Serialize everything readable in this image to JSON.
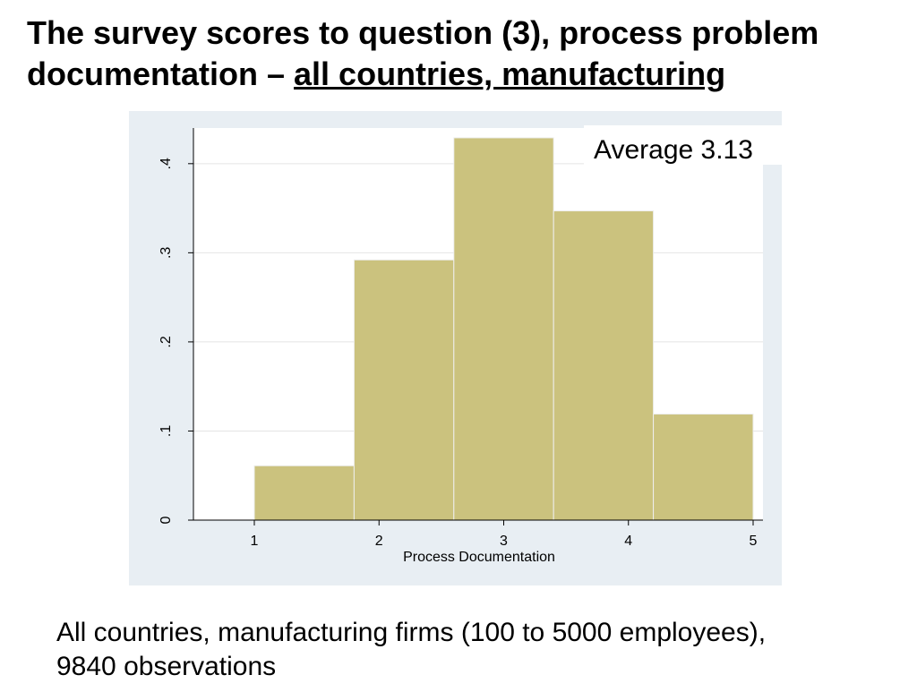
{
  "slide": {
    "title_part1": "The survey scores to question (3), process problem documentation – ",
    "title_part2": "all countries, manufacturing",
    "caption_line1": "All countries, manufacturing firms (100 to 5000 employees),",
    "caption_line2": "9840 observations"
  },
  "colors": {
    "plot_background": "#e8eef3",
    "bar_fill": "#cbc27e",
    "bar_stroke": "#eeeeee",
    "grid": "#e4e4e4",
    "axis": "#000000"
  },
  "chart_data": {
    "type": "bar",
    "subtype": "histogram",
    "xlabel": "Process Documentation",
    "ylabel": "",
    "annotation": "Average 3.13",
    "xlim": [
      1,
      5
    ],
    "ylim": [
      0,
      0.44
    ],
    "x_ticks": [
      1,
      2,
      3,
      4,
      5
    ],
    "x_tick_labels": [
      "1",
      "2",
      "3",
      "4",
      "5"
    ],
    "y_ticks": [
      0,
      0.1,
      0.2,
      0.3,
      0.4
    ],
    "y_tick_labels": [
      "0",
      ".1",
      ".2",
      ".3",
      ".4"
    ],
    "grid": true,
    "bins": [
      {
        "x0": 1.0,
        "x1": 1.8,
        "value": 0.061
      },
      {
        "x0": 1.8,
        "x1": 2.6,
        "value": 0.292
      },
      {
        "x0": 2.6,
        "x1": 3.4,
        "value": 0.429
      },
      {
        "x0": 3.4,
        "x1": 4.2,
        "value": 0.347
      },
      {
        "x0": 4.2,
        "x1": 5.0,
        "value": 0.119
      }
    ]
  }
}
